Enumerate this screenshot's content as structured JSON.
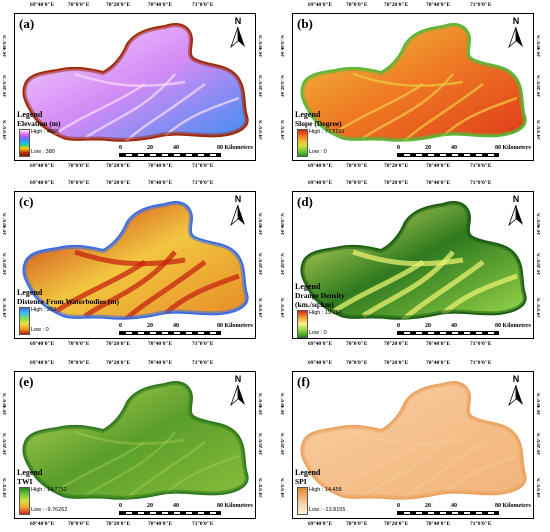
{
  "lon_ticks": [
    "69°40'0\"E",
    "70°0'0\"E",
    "70°20'0\"E",
    "70°40'0\"E",
    "71°0'0\"E"
  ],
  "lat_ticks": [
    "34°40'0\"N",
    "34°20'0\"N",
    "34°0'0\"N"
  ],
  "north_label": "N",
  "scale": {
    "values": [
      "0",
      "20",
      "40",
      "80 Kilometers"
    ]
  },
  "panels": [
    {
      "label": "(a)",
      "legend_title": "Legend",
      "layer": "Elevation (m)",
      "high": "High : 4666",
      "low": "Low : 380",
      "ramp": [
        "#ffffff",
        "#f070ff",
        "#8a5cff",
        "#2aa0ff",
        "#20d0a0",
        "#ffd000",
        "#c03000",
        "#7a1f00"
      ],
      "colors": {
        "base": "#d58cf5",
        "mid": "#3d8df0",
        "edge": "#a02a0a",
        "accent": "#f6d8ff"
      }
    },
    {
      "label": "(b)",
      "legend_title": "Legend",
      "layer": "Slope (Degree)",
      "high": "High : 77.5891",
      "low": "Low : 0",
      "ramp": [
        "#d42a12",
        "#f06a20",
        "#f5b030",
        "#d8e040",
        "#7ac83a",
        "#1e9a2a"
      ],
      "colors": {
        "base": "#ee7a24",
        "mid": "#e03a18",
        "edge": "#5ab83a",
        "accent": "#f2c640"
      }
    },
    {
      "label": "(c)",
      "legend_title": "Legend",
      "layer": "Distence From Waterbodies (m)",
      "high": "High : 250",
      "low": "Low : 0",
      "ramp": [
        "#3a6fe8",
        "#3ac0ff",
        "#7ae050",
        "#f0e040",
        "#f0a020",
        "#c02000"
      ],
      "colors": {
        "base": "#f2c640",
        "mid": "#e58a25",
        "edge": "#3a6fe8",
        "accent": "#c62410"
      }
    },
    {
      "label": "(d)",
      "legend_title": "Legend",
      "layer": "Drange Density",
      "layer_units": "(km./sq.km)",
      "high": "High : 19.967",
      "low": "Low : 0",
      "ramp": [
        "#d4241a",
        "#f0a030",
        "#f5f08a",
        "#90d040",
        "#1e8a1e"
      ],
      "colors": {
        "base": "#2f7a1e",
        "mid": "#9ad84a",
        "edge": "#1c5e14",
        "accent": "#e8f070"
      }
    },
    {
      "label": "(e)",
      "legend_title": "Legend",
      "layer": "TWI",
      "high": "High : 14.7752",
      "low": "Low : -9.76262",
      "ramp": [
        "#1e8a1e",
        "#7ac83a",
        "#d8e040",
        "#f0a030",
        "#d4241a"
      ],
      "colors": {
        "base": "#5a9e2a",
        "mid": "#88bf3c",
        "edge": "#2f7a1e",
        "accent": "#b9d85a"
      }
    },
    {
      "label": "(f)",
      "legend_title": "Legend",
      "layer": "SPI",
      "high": "High : 14.458",
      "low": "Low : -13.8155",
      "ramp": [
        "#e08a30",
        "#f0b070",
        "#f8d8b0",
        "#fff3e0"
      ],
      "colors": {
        "base": "#f5c08c",
        "mid": "#f2b47a",
        "edge": "#eaa460",
        "accent": "#f9d2a6"
      }
    }
  ]
}
